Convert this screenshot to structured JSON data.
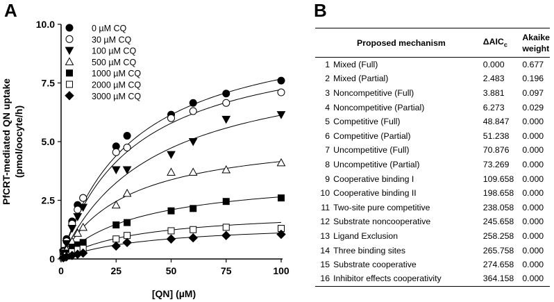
{
  "panels": {
    "a": "A",
    "b": "B"
  },
  "chart_data": {
    "type": "scatter",
    "title": "",
    "xlabel": "[QN] (µM)",
    "ylabel": "PfCRT-mediated QN uptake",
    "ylabel_units": "(pmol/oocyte/h)",
    "xlim": [
      0,
      100
    ],
    "ylim": [
      0,
      10
    ],
    "x_ticks": [
      "0",
      "25",
      "50",
      "75",
      "100"
    ],
    "y_ticks": [
      "0",
      "2.5",
      "5.0",
      "7.5",
      "10.0"
    ],
    "x": [
      1,
      2.5,
      5,
      7.5,
      10,
      25,
      30,
      50,
      60,
      75,
      100
    ],
    "legend_position": "top-left",
    "series": [
      {
        "name": "0 µM CQ",
        "marker": "circle-filled",
        "values": [
          0.35,
          0.85,
          1.6,
          2.3,
          2.6,
          4.8,
          5.25,
          6.15,
          6.65,
          7.05,
          7.6
        ],
        "fit": {
          "vmax": 10.2,
          "km": 33
        }
      },
      {
        "name": "30 µM CQ",
        "marker": "circle-open",
        "values": [
          0.3,
          0.75,
          1.5,
          2.1,
          2.6,
          4.55,
          4.75,
          6.0,
          6.3,
          6.65,
          7.1
        ],
        "fit": {
          "vmax": 9.6,
          "km": 33
        }
      },
      {
        "name": "100 µM CQ",
        "marker": "triangle-down-filled",
        "values": [
          0.25,
          0.65,
          1.3,
          1.8,
          2.2,
          3.8,
          3.8,
          4.45,
          5.0,
          5.95,
          6.15
        ],
        "fit": {
          "vmax": 8.7,
          "km": 42
        }
      },
      {
        "name": "500 µM CQ",
        "marker": "triangle-up-open",
        "values": [
          0.15,
          0.4,
          0.75,
          1.1,
          1.35,
          2.3,
          2.8,
          3.7,
          3.7,
          3.8,
          4.1
        ],
        "fit": {
          "vmax": 5.4,
          "km": 30
        }
      },
      {
        "name": "1000 µM CQ",
        "marker": "square-filled",
        "values": [
          0.1,
          0.25,
          0.5,
          0.6,
          0.7,
          1.45,
          1.55,
          2.05,
          2.15,
          2.45,
          2.6
        ],
        "fit": {
          "vmax": 3.6,
          "km": 36
        }
      },
      {
        "name": "2000 µM CQ",
        "marker": "square-open",
        "values": [
          0.05,
          0.15,
          0.3,
          0.4,
          0.45,
          0.85,
          1.0,
          1.2,
          1.25,
          1.35,
          1.3
        ],
        "fit": {
          "vmax": 2.1,
          "km": 35
        }
      },
      {
        "name": "3000 µM CQ",
        "marker": "diamond-filled",
        "values": [
          0.05,
          0.1,
          0.15,
          0.2,
          0.25,
          0.55,
          0.7,
          0.85,
          0.9,
          1.0,
          1.05
        ],
        "fit": {
          "vmax": 1.55,
          "km": 40
        }
      }
    ]
  },
  "table": {
    "headers": {
      "mechanism": "Proposed mechanism",
      "aic_main": "ΔAIC",
      "aic_sub": "c",
      "weight_line1": "Akaike",
      "weight_line2": "weight"
    },
    "rows": [
      {
        "num": "1",
        "mechanism": "Mixed (Full)",
        "aic": "0.000",
        "weight": "0.677"
      },
      {
        "num": "2",
        "mechanism": "Mixed (Partial)",
        "aic": "2.483",
        "weight": "0.196"
      },
      {
        "num": "3",
        "mechanism": "Noncompetitive (Full)",
        "aic": "3.881",
        "weight": "0.097"
      },
      {
        "num": "4",
        "mechanism": "Noncompetitive (Partial)",
        "aic": "6.273",
        "weight": "0.029"
      },
      {
        "num": "5",
        "mechanism": "Competitive (Full)",
        "aic": "48.847",
        "weight": "0.000"
      },
      {
        "num": "6",
        "mechanism": "Competitive (Partial)",
        "aic": "51.238",
        "weight": "0.000"
      },
      {
        "num": "7",
        "mechanism": "Uncompetitive (Full)",
        "aic": "70.876",
        "weight": "0.000"
      },
      {
        "num": "8",
        "mechanism": "Uncompetitive (Partial)",
        "aic": "73.269",
        "weight": "0.000"
      },
      {
        "num": "9",
        "mechanism": "Cooperative binding I",
        "aic": "109.658",
        "weight": "0.000"
      },
      {
        "num": "10",
        "mechanism": "Cooperative binding II",
        "aic": "198.658",
        "weight": "0.000"
      },
      {
        "num": "11",
        "mechanism": "Two-site pure competitive",
        "aic": "238.058",
        "weight": "0.000"
      },
      {
        "num": "12",
        "mechanism": "Substrate noncooperative",
        "aic": "245.658",
        "weight": "0.000"
      },
      {
        "num": "13",
        "mechanism": "Ligand Exclusion",
        "aic": "258.258",
        "weight": "0.000"
      },
      {
        "num": "14",
        "mechanism": "Three binding sites",
        "aic": "265.758",
        "weight": "0.000"
      },
      {
        "num": "15",
        "mechanism": "Substrate cooperative",
        "aic": "274.658",
        "weight": "0.000"
      },
      {
        "num": "16",
        "mechanism": "Inhibitor effects cooperativity",
        "aic": "364.158",
        "weight": "0.000"
      }
    ]
  }
}
